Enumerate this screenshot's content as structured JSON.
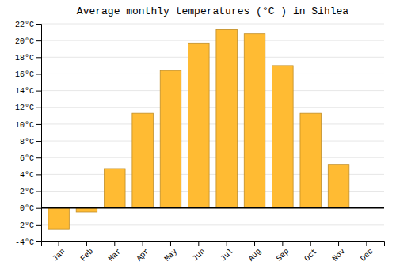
{
  "chart_data": {
    "type": "bar",
    "title": "Average monthly temperatures (°C ) in Sihlea",
    "categories": [
      "Jan",
      "Feb",
      "Mar",
      "Apr",
      "May",
      "Jun",
      "Jul",
      "Aug",
      "Sep",
      "Oct",
      "Nov",
      "Dec"
    ],
    "values": [
      -2.5,
      -0.5,
      4.7,
      11.3,
      16.4,
      19.7,
      21.3,
      20.8,
      17.0,
      11.3,
      5.2,
      0.0
    ],
    "color": "#FFBB33",
    "ylim": [
      -4,
      22
    ],
    "yticks": [
      {
        "value": -4,
        "label": "-4°C"
      },
      {
        "value": -2,
        "label": "-2°C"
      },
      {
        "value": 0,
        "label": "0°C"
      },
      {
        "value": 2,
        "label": "2°C"
      },
      {
        "value": 4,
        "label": "4°C"
      },
      {
        "value": 6,
        "label": "6°C"
      },
      {
        "value": 8,
        "label": "8°C"
      },
      {
        "value": 10,
        "label": "10°C"
      },
      {
        "value": 12,
        "label": "12°C"
      },
      {
        "value": 14,
        "label": "14°C"
      },
      {
        "value": 16,
        "label": "16°C"
      },
      {
        "value": 18,
        "label": "18°C"
      },
      {
        "value": 20,
        "label": "20°C"
      },
      {
        "value": 22,
        "label": "22°C"
      }
    ],
    "grid": true
  }
}
